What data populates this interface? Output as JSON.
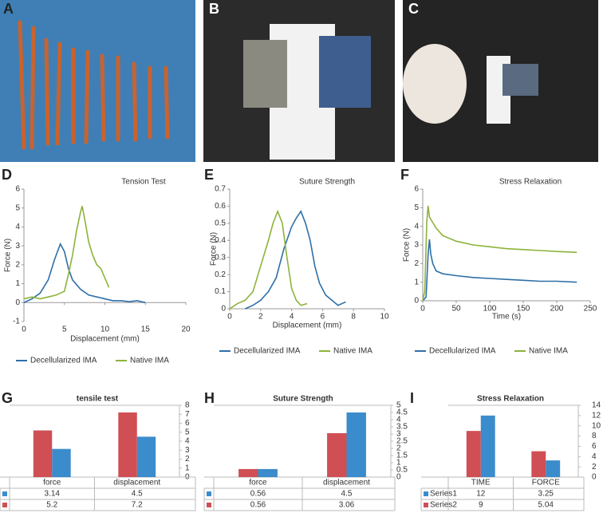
{
  "panels": [
    "A",
    "B",
    "C",
    "D",
    "E",
    "F",
    "G",
    "H",
    "I"
  ],
  "chart_data": [
    {
      "type": "line",
      "title": "Tension Test",
      "x_label": "Displacement (mm)",
      "y_label": "Force (N)",
      "xlim": [
        0,
        20
      ],
      "xticks": [
        0,
        5,
        10,
        15,
        20
      ],
      "ylim": [
        -1,
        6
      ],
      "yticks": [
        -1,
        0,
        1,
        2,
        3,
        4,
        5,
        6
      ],
      "series": [
        {
          "name": "Decellularized IMA",
          "color": "#2e6fa8",
          "x": [
            0,
            1,
            2,
            3,
            3.8,
            4.5,
            5,
            5.5,
            6,
            7,
            8,
            9,
            10,
            11,
            12,
            13,
            14,
            15
          ],
          "values": [
            0,
            0.2,
            0.5,
            1.2,
            2.3,
            3.1,
            2.7,
            1.8,
            1.2,
            0.7,
            0.4,
            0.3,
            0.2,
            0.1,
            0.1,
            0.05,
            0.1,
            0
          ]
        },
        {
          "name": "Native IMA",
          "color": "#8db33a",
          "x": [
            0,
            1,
            2,
            3,
            4,
            5,
            5.5,
            6,
            6.5,
            7,
            7.2,
            7.6,
            8,
            8.5,
            9,
            9.5,
            10,
            10.5
          ],
          "values": [
            0.2,
            0.3,
            0.2,
            0.3,
            0.4,
            0.6,
            1.5,
            2.5,
            3.8,
            4.8,
            5.1,
            4.2,
            3.2,
            2.5,
            2.0,
            1.8,
            1.3,
            0.8
          ]
        }
      ]
    },
    {
      "type": "line",
      "title": "Suture Strength",
      "x_label": "Displacement (mm)",
      "y_label": "Force (N)",
      "xlim": [
        0,
        10
      ],
      "xticks": [
        0,
        2,
        4,
        6,
        8,
        10
      ],
      "ylim": [
        0,
        0.7
      ],
      "yticks": [
        0,
        0.1,
        0.2,
        0.3,
        0.4,
        0.5,
        0.6,
        0.7
      ],
      "series": [
        {
          "name": "Decellularized IMA",
          "color": "#2e6fa8",
          "x": [
            1,
            1.5,
            2,
            2.5,
            3,
            3.5,
            4,
            4.3,
            4.6,
            4.9,
            5.2,
            5.5,
            5.8,
            6.2,
            6.6,
            7,
            7.5
          ],
          "values": [
            0,
            0.02,
            0.05,
            0.1,
            0.18,
            0.35,
            0.48,
            0.53,
            0.57,
            0.5,
            0.4,
            0.25,
            0.15,
            0.08,
            0.05,
            0.02,
            0.04
          ]
        },
        {
          "name": "Native IMA",
          "color": "#8db33a",
          "x": [
            0,
            0.5,
            1,
            1.5,
            2,
            2.5,
            2.8,
            3.1,
            3.4,
            3.7,
            4,
            4.3,
            4.6,
            5
          ],
          "values": [
            0,
            0.03,
            0.05,
            0.1,
            0.25,
            0.4,
            0.5,
            0.57,
            0.5,
            0.3,
            0.12,
            0.05,
            0.02,
            0.03
          ]
        }
      ]
    },
    {
      "type": "line",
      "title": "Stress Relaxation",
      "x_label": "Time (s)",
      "y_label": "Force (N)",
      "xlim": [
        0,
        250
      ],
      "xticks": [
        0,
        50,
        100,
        150,
        200,
        250
      ],
      "ylim": [
        0,
        6
      ],
      "yticks": [
        0,
        1,
        2,
        3,
        4,
        5,
        6
      ],
      "series": [
        {
          "name": "Decellularized IMA",
          "color": "#2e6fa8",
          "x": [
            0,
            5,
            8,
            10,
            12,
            15,
            20,
            30,
            50,
            75,
            100,
            125,
            150,
            175,
            200,
            230
          ],
          "values": [
            0,
            0.2,
            2.5,
            3.3,
            2.5,
            2.0,
            1.6,
            1.45,
            1.35,
            1.25,
            1.2,
            1.15,
            1.1,
            1.05,
            1.05,
            1.0
          ]
        },
        {
          "name": "Native IMA",
          "color": "#8db33a",
          "x": [
            0,
            3,
            6,
            8,
            10,
            15,
            20,
            30,
            50,
            75,
            100,
            125,
            150,
            175,
            200,
            230
          ],
          "values": [
            0,
            0.5,
            4.2,
            5.1,
            4.5,
            4.2,
            3.9,
            3.5,
            3.2,
            3.0,
            2.9,
            2.8,
            2.75,
            2.7,
            2.65,
            2.6
          ]
        }
      ]
    },
    {
      "type": "bar",
      "title": "tensile test",
      "categories": [
        "force",
        "displacement"
      ],
      "ylim": [
        0,
        8
      ],
      "yticks": [
        0,
        1,
        2,
        3,
        4,
        5,
        6,
        7,
        8
      ],
      "series": [
        {
          "color": "#3a8ccc",
          "values": [
            3.14,
            4.5
          ]
        },
        {
          "color": "#cf4f54",
          "values": [
            5.2,
            7.2
          ]
        }
      ]
    },
    {
      "type": "bar",
      "title": "Suture Strength",
      "categories": [
        "force",
        "displacement"
      ],
      "ylim": [
        0,
        5
      ],
      "yticks": [
        0,
        0.5,
        1,
        1.5,
        2,
        2.5,
        3,
        3.5,
        4,
        4.5,
        5
      ],
      "series": [
        {
          "color": "#3a8ccc",
          "values": [
            0.56,
            4.5
          ]
        },
        {
          "color": "#cf4f54",
          "values": [
            0.56,
            3.06
          ]
        }
      ]
    },
    {
      "type": "bar",
      "title": "Stress Relaxation",
      "categories": [
        "TIME",
        "FORCE"
      ],
      "ylim": [
        0,
        14
      ],
      "yticks": [
        0,
        2,
        4,
        6,
        8,
        10,
        12,
        14
      ],
      "series": [
        {
          "name": "Series1",
          "color": "#3a8ccc",
          "values": [
            12,
            3.25
          ]
        },
        {
          "name": "Series2",
          "color": "#cf4f54",
          "values": [
            9,
            5.04
          ]
        }
      ]
    }
  ]
}
